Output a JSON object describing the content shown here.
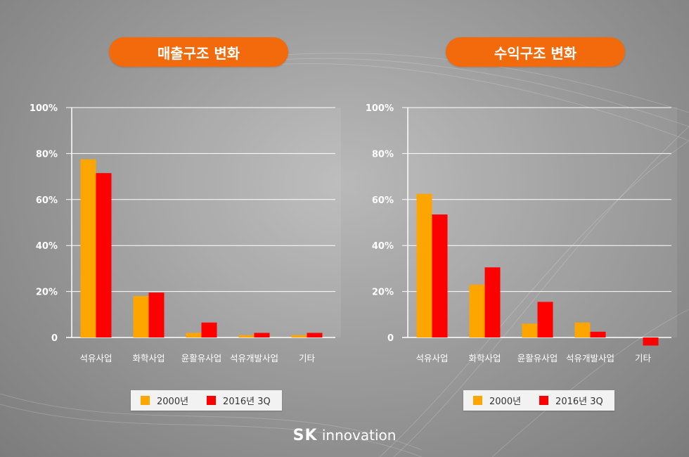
{
  "colors": {
    "s2000": "#ffa500",
    "s2016": "#ff0000",
    "pill": "#f26a0c"
  },
  "logo": {
    "brand": "SK",
    "suffix": "innovation"
  },
  "chart_data": [
    {
      "type": "bar",
      "title": "매출구조 변화",
      "categories": [
        "석유사업",
        "화학사업",
        "윤활유사업",
        "석유개발사업",
        "기타"
      ],
      "series": [
        {
          "name": "2000년",
          "values": [
            77.5,
            18,
            2,
            1,
            1
          ]
        },
        {
          "name": "2016년 3Q",
          "values": [
            71.5,
            19.5,
            6.5,
            2,
            2
          ]
        }
      ],
      "yticks": [
        "0",
        "20%",
        "40%",
        "60%",
        "80%",
        "100%"
      ],
      "ylim": [
        0,
        100
      ],
      "grid": true,
      "legend": "bottom"
    },
    {
      "type": "bar",
      "title": "수익구조 변화",
      "categories": [
        "석유사업",
        "화학사업",
        "윤활유사업",
        "석유개발사업",
        "기타"
      ],
      "series": [
        {
          "name": "2000년",
          "values": [
            62.5,
            23,
            6,
            6.5,
            0
          ]
        },
        {
          "name": "2016년 3Q",
          "values": [
            53.5,
            30.5,
            15.5,
            2.5,
            -3.5
          ]
        }
      ],
      "yticks": [
        "0",
        "20%",
        "40%",
        "60%",
        "80%",
        "100%"
      ],
      "ylim": [
        0,
        100
      ],
      "grid": true,
      "legend": "bottom"
    }
  ]
}
